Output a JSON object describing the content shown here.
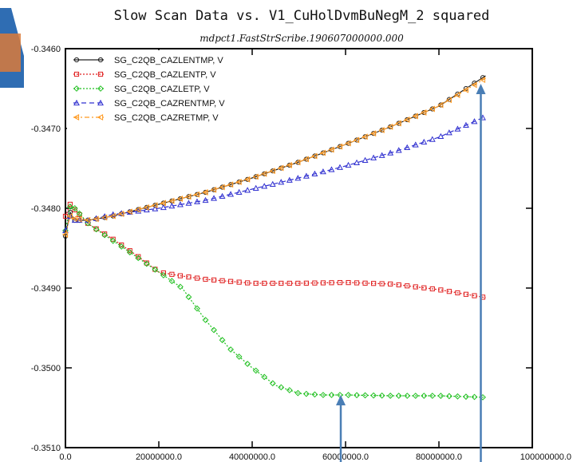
{
  "chart_data": {
    "type": "line",
    "title": "Slow Scan Data vs. V1_CuHolDvmBuNegM_2 squared",
    "subtitle": "mdpct1.FastStrScribe.190607000000.000",
    "xlabel": "",
    "ylabel": "",
    "xlim": [
      0,
      100000000
    ],
    "ylim": [
      -0.351,
      -0.346
    ],
    "x_ticks": [
      0,
      20000000,
      40000000,
      60000000,
      80000000,
      100000000
    ],
    "x_tick_labels": [
      "0.0",
      "20000000.0",
      "40000000.0",
      "60000000.0",
      "80000000.0",
      "100000000.0"
    ],
    "y_ticks": [
      -0.351,
      -0.35,
      -0.349,
      -0.348,
      -0.347,
      -0.346
    ],
    "y_tick_labels": [
      "-0.3510",
      "-0.3500",
      "-0.3490",
      "-0.3480",
      "-0.3470",
      "-0.3460"
    ],
    "grid": false,
    "legend_position": "top-left",
    "series": [
      {
        "name": "SG_C2QB_CAZLENTMP, V",
        "color": "#222222",
        "marker": "circle",
        "dash": "solid",
        "x": [
          0,
          1000000,
          2000000,
          5000000,
          10000000,
          20000000,
          30000000,
          40000000,
          50000000,
          60000000,
          70000000,
          80000000,
          90000000
        ],
        "y": [
          -0.34835,
          -0.34805,
          -0.34815,
          -0.34815,
          -0.3481,
          -0.34795,
          -0.3478,
          -0.34762,
          -0.34742,
          -0.3472,
          -0.34697,
          -0.34672,
          -0.34634
        ]
      },
      {
        "name": "SG_C2QB_CAZLENTP, V",
        "color": "#e02020",
        "marker": "square",
        "dash": "dot",
        "x": [
          0,
          1000000,
          2000000,
          5000000,
          10000000,
          15000000,
          20000000,
          25000000,
          30000000,
          40000000,
          50000000,
          60000000,
          70000000,
          80000000,
          90000000
        ],
        "y": [
          -0.3481,
          -0.34795,
          -0.34802,
          -0.3482,
          -0.34838,
          -0.34858,
          -0.3488,
          -0.34885,
          -0.34889,
          -0.34894,
          -0.34894,
          -0.34893,
          -0.34895,
          -0.34902,
          -0.34912
        ]
      },
      {
        "name": "SG_C2QB_CAZLETP, V",
        "color": "#22c022",
        "marker": "diamond",
        "dash": "dot",
        "x": [
          0,
          1000000,
          2000000,
          5000000,
          10000000,
          15000000,
          20000000,
          25000000,
          30000000,
          35000000,
          40000000,
          45000000,
          50000000,
          55000000,
          60000000,
          70000000,
          80000000,
          90000000
        ],
        "y": [
          -0.34828,
          -0.34798,
          -0.348,
          -0.3482,
          -0.3484,
          -0.3486,
          -0.3488,
          -0.349,
          -0.3494,
          -0.34975,
          -0.35,
          -0.35022,
          -0.35032,
          -0.35034,
          -0.35034,
          -0.35035,
          -0.35035,
          -0.35037
        ]
      },
      {
        "name": "SG_C2QB_CAZRENTMP, V",
        "color": "#3030d0",
        "marker": "triangle",
        "dash": "dash",
        "x": [
          0,
          1000000,
          2000000,
          5000000,
          10000000,
          20000000,
          30000000,
          40000000,
          50000000,
          60000000,
          70000000,
          80000000,
          90000000
        ],
        "y": [
          -0.34828,
          -0.3481,
          -0.34815,
          -0.34815,
          -0.34808,
          -0.348,
          -0.3479,
          -0.34776,
          -0.34762,
          -0.34747,
          -0.3473,
          -0.34711,
          -0.34685
        ]
      },
      {
        "name": "SG_C2QB_CAZRETMP, V",
        "color": "#ff9a22",
        "marker": "left-triangle",
        "dash": "dashdot",
        "x": [
          0,
          1000000,
          2000000,
          5000000,
          10000000,
          20000000,
          30000000,
          40000000,
          50000000,
          60000000,
          70000000,
          80000000,
          90000000
        ],
        "y": [
          -0.34833,
          -0.3481,
          -0.34813,
          -0.34815,
          -0.3481,
          -0.34795,
          -0.3478,
          -0.34762,
          -0.34742,
          -0.3472,
          -0.34697,
          -0.34672,
          -0.34637
        ]
      }
    ],
    "annotations": [
      {
        "type": "arrow",
        "color": "#4a7eb5",
        "x": 60000000,
        "y_tip": -0.3503
      },
      {
        "type": "arrow",
        "color": "#4a7eb5",
        "x": 90000000,
        "y_tip": -0.3464
      }
    ]
  }
}
